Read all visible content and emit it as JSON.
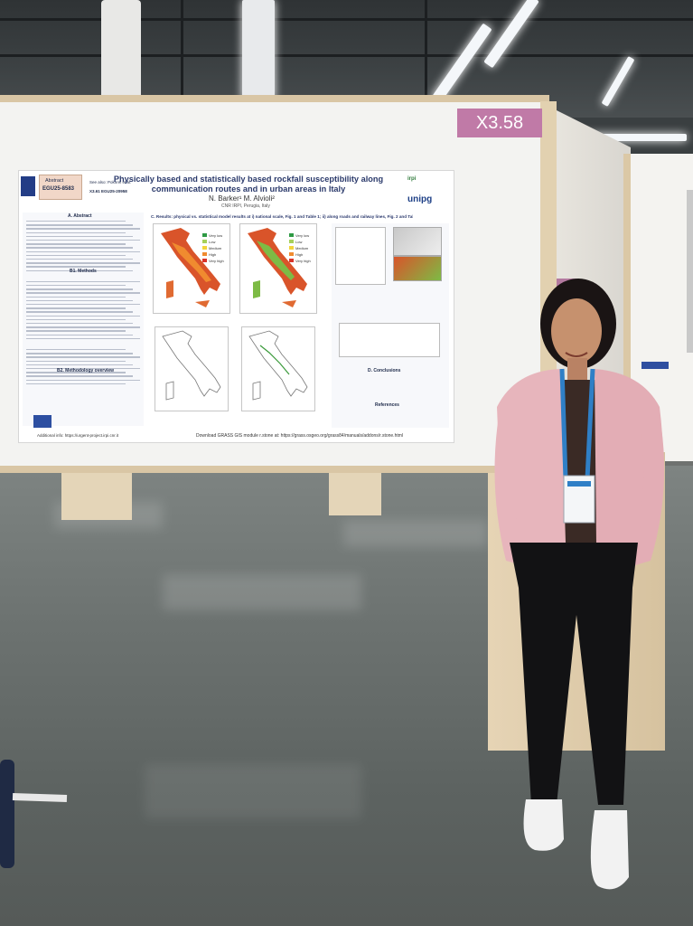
{
  "board": {
    "number": "X3.58"
  },
  "poster": {
    "title": "Physically based and statistically based rockfall susceptibility along communication routes and in urban areas in Italy",
    "authors": "N. Barker¹ M. Alvioli²",
    "affiliation": "CNR IRPI, Perugia, Italy",
    "abstract_label": "Abstract",
    "abstract_id": "EGU25-8583",
    "see_also": "See also: Pokhrel et al.",
    "session": "X3.61 EGU25-20958",
    "logo_right_top": "irpi",
    "logo_right_bottom": "unipg",
    "sections": {
      "abstract": "A. Abstract",
      "methods": "B1. Methods",
      "methodology": "B2. Methodology overview",
      "results": "C. Results: physical vs. statistical model results at i) national scale, Fig. 1 and Table 1; ii) along roads and railway lines, Fig. 2 and Table 1, and iii) urban areas, Fig. 3",
      "conclusions": "D. Conclusions",
      "references": "References"
    },
    "legend": [
      "Very low",
      "Low",
      "Medium",
      "High",
      "Very high"
    ],
    "additional_info": "Additional info: https://urgent-project.irpi.cnr.it",
    "download": "Download GRASS GIS module r.stone at: https://grass.osgeo.org/grass84/manuals/addons/r.stone.html"
  },
  "colors": {
    "tag": "#c07aa7",
    "board": "#f3f3f1",
    "frame": "#d9c6a5",
    "jacket": "#e7b5bc",
    "lanyard": "#2f7fc6"
  },
  "icons": [
    "egu-logo",
    "eu-flag-icon",
    "irpi-logo",
    "unipg-logo",
    "lanyard-badge"
  ]
}
